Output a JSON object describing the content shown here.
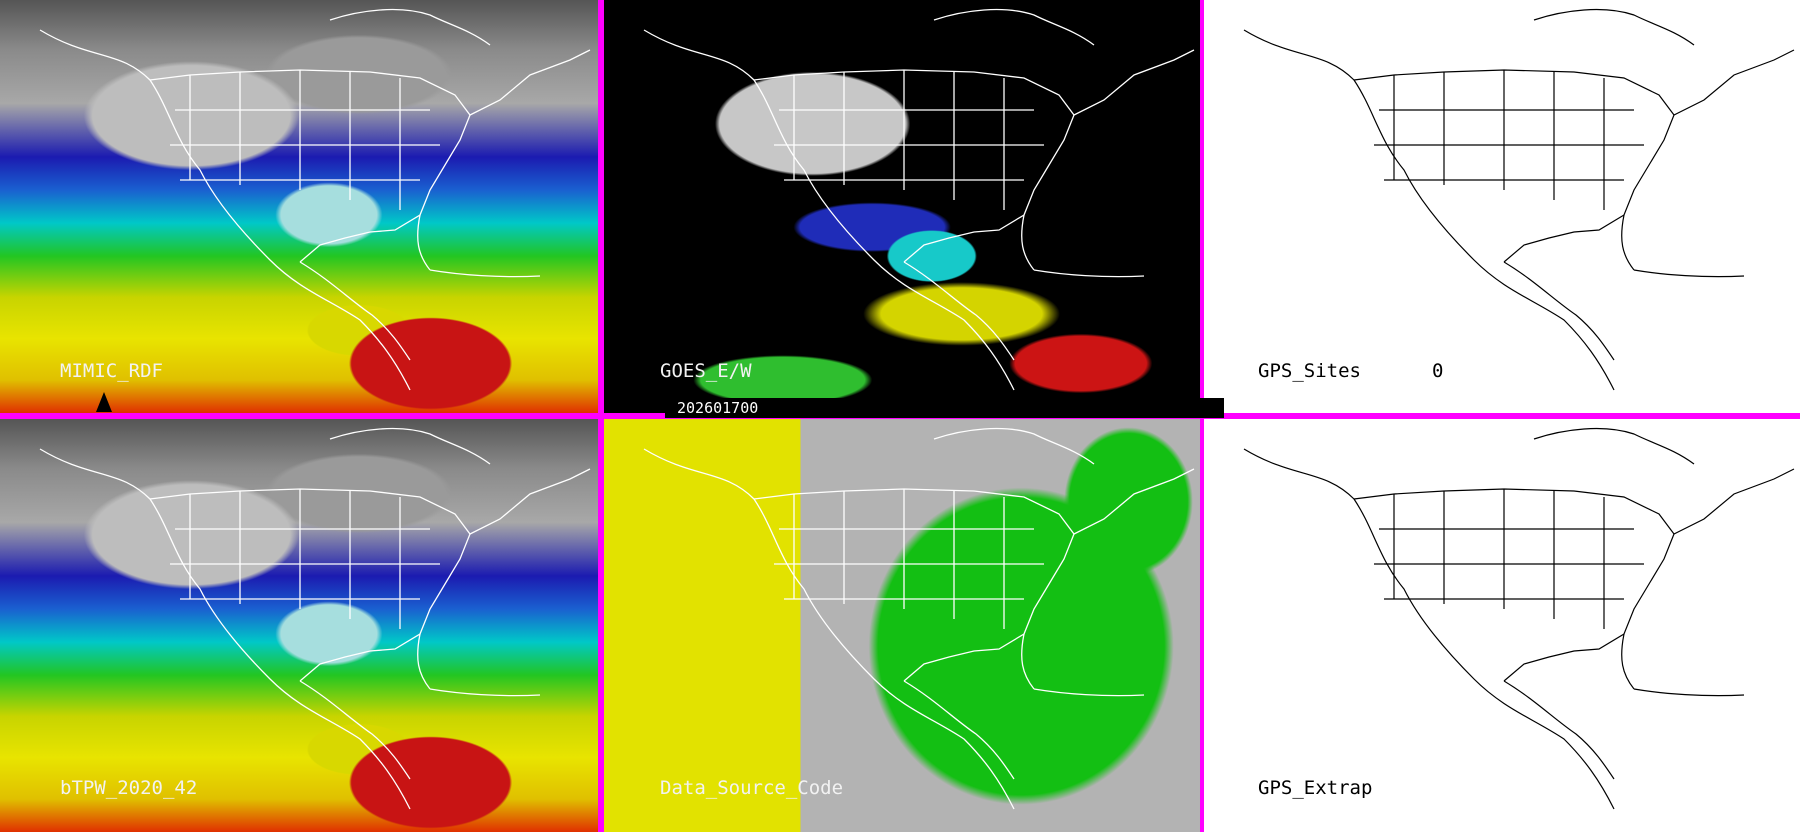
{
  "timestamp": "202601700",
  "panels": {
    "mimic": {
      "label": "MIMIC_RDF"
    },
    "goes": {
      "label": "GOES_E/W"
    },
    "gps_sites": {
      "label": "GPS_Sites",
      "count": "0"
    },
    "btpw": {
      "label": "bTPW_2020_42"
    },
    "data_source": {
      "label": "Data_Source_Code"
    },
    "gps_extrap": {
      "label": "GPS_Extrap"
    }
  },
  "colors": {
    "separator": "#ff00ff",
    "moist": "#c81414",
    "dry": "#1b1bb0",
    "mid": "#22c622",
    "high": "#e8e400",
    "source_a": "#e2e200",
    "source_b": "#13bf13",
    "nodata": "#b3b3b3"
  }
}
